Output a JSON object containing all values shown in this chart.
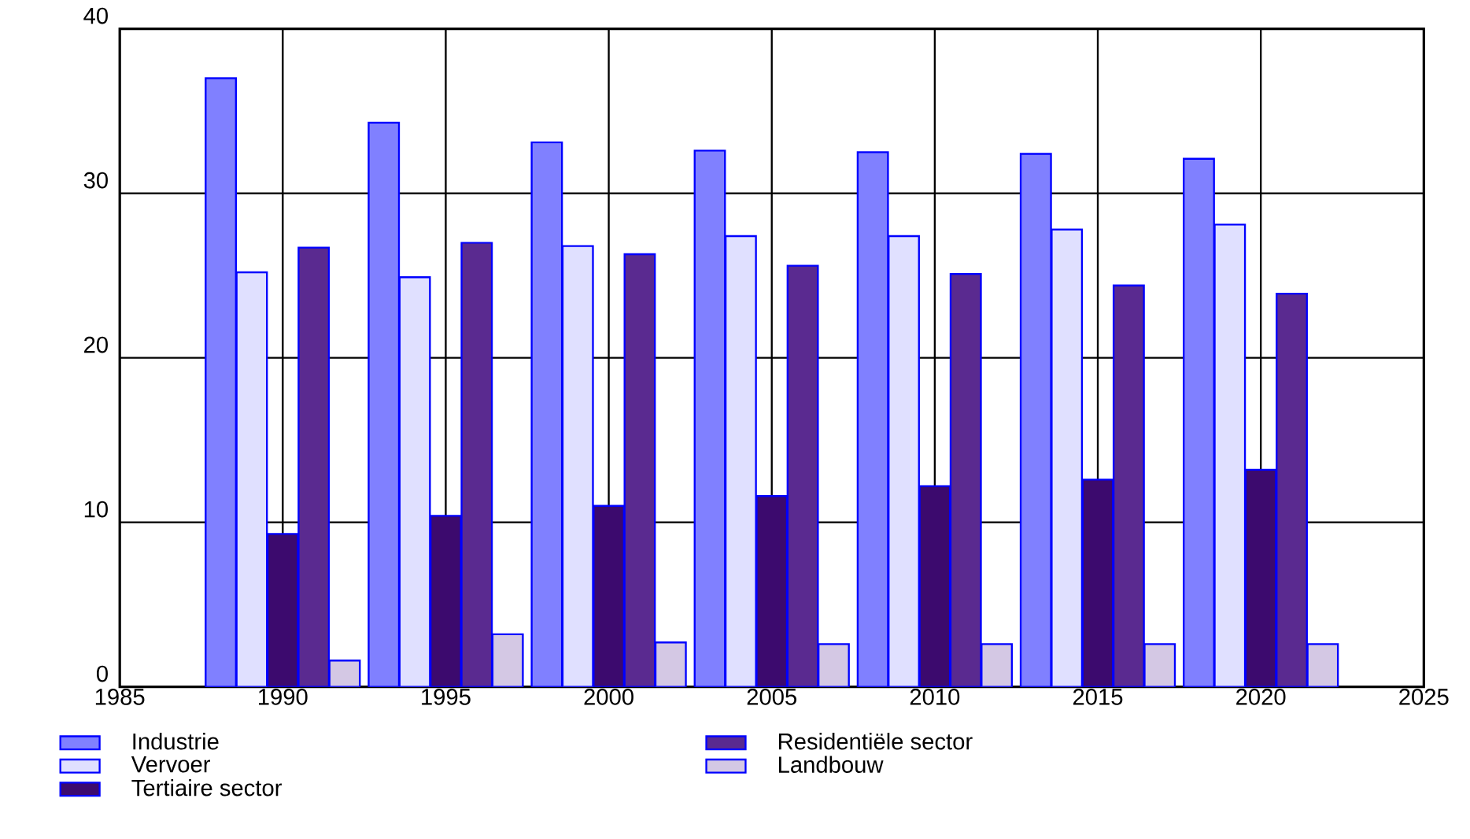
{
  "chart_data": {
    "type": "bar",
    "x": [
      1990,
      1995,
      2000,
      2005,
      2010,
      2015,
      2020
    ],
    "xlim": [
      1985,
      2025
    ],
    "xticks": [
      1985,
      1990,
      1995,
      2000,
      2005,
      2010,
      2015,
      2020,
      2025
    ],
    "ylim": [
      0,
      40
    ],
    "yticks": [
      0,
      10,
      20,
      30,
      40
    ],
    "grid": true,
    "legend": "bottom",
    "series": [
      {
        "name": "Industrie",
        "color": "#8080ff",
        "values": [
          37.0,
          34.3,
          33.1,
          32.6,
          32.5,
          32.4,
          32.1
        ]
      },
      {
        "name": "Vervoer",
        "color": "#e0e0ff",
        "values": [
          25.2,
          24.9,
          26.8,
          27.4,
          27.4,
          27.8,
          28.1
        ]
      },
      {
        "name": "Tertiaire sector",
        "color": "#3c0a6e",
        "values": [
          9.3,
          10.4,
          11.0,
          11.6,
          12.2,
          12.6,
          13.2
        ]
      },
      {
        "name": "Residentiële sector",
        "color": "#5a2a90",
        "values": [
          26.7,
          27.0,
          26.3,
          25.6,
          25.1,
          24.4,
          23.9
        ]
      },
      {
        "name": "Landbouw",
        "color": "#d4c8e4",
        "values": [
          1.6,
          3.2,
          2.7,
          2.6,
          2.6,
          2.6,
          2.6
        ]
      }
    ]
  }
}
